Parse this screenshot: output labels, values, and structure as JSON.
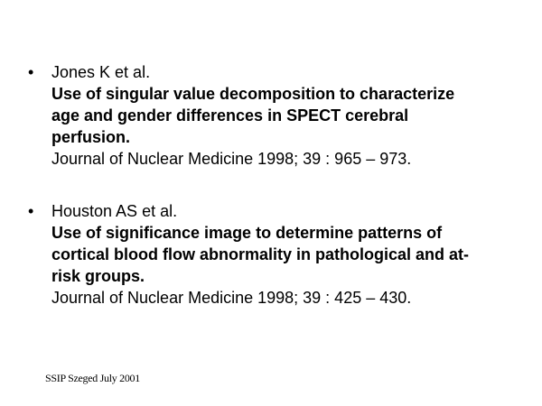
{
  "references": [
    {
      "author": "Jones K et al.",
      "title_lines": [
        "Use of singular value decomposition to characterize",
        "age and gender differences in SPECT cerebral",
        "perfusion."
      ],
      "citation": "Journal of Nuclear Medicine 1998; 39 : 965 – 973."
    },
    {
      "author": "Houston AS et al.",
      "title_lines": [
        "Use of significance image to determine patterns of",
        "cortical blood flow abnormality in pathological and at-",
        "risk groups."
      ],
      "citation": "Journal of Nuclear Medicine 1998; 39 : 425 – 430."
    }
  ],
  "bullet": "•",
  "footer": "SSIP Szeged July 2001"
}
